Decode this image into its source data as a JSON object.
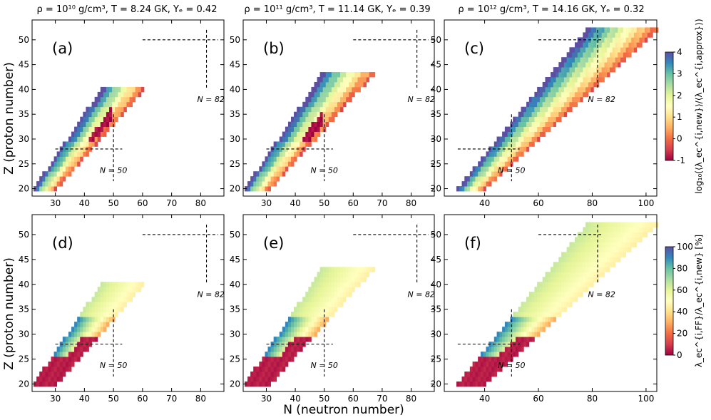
{
  "chart_data": {
    "type": "heatmap",
    "column_titles": [
      "ρ = 10¹⁰ g/cm³, T = 8.24 GK, Yₑ = 0.42",
      "ρ = 10¹¹ g/cm³, T = 11.14 GK, Yₑ = 0.39",
      "ρ = 10¹² g/cm³, T = 14.16 GK, Yₑ = 0.32"
    ],
    "xlabel": "N (neutron number)",
    "ylabel": "Z (proton number)",
    "ylim": [
      18.5,
      54
    ],
    "xlims": [
      [
        22,
        88
      ],
      [
        22,
        88
      ],
      [
        25,
        104
      ]
    ],
    "xticks": [
      [
        30,
        40,
        50,
        60,
        70,
        80
      ],
      [
        30,
        40,
        50,
        60,
        70,
        80
      ],
      [
        40,
        60,
        80,
        100
      ]
    ],
    "yticks": [
      20,
      25,
      30,
      35,
      40,
      45,
      50
    ],
    "magic_labels": {
      "n50": "N = 50",
      "n82": "N = 82"
    },
    "colorbars": [
      {
        "label": "log₁₀(⟨λ_ec^{i,new}⟩/⟨λ_ec^{i,approx}⟩)",
        "min": -1,
        "max": 4,
        "ticks": [
          -1,
          0,
          1,
          2,
          3,
          4
        ]
      },
      {
        "label": "λ_ec^{i,FF}/λ_ec^{i,new} [%]",
        "min": 0,
        "max": 100,
        "ticks": [
          0,
          20,
          40,
          60,
          80,
          100
        ]
      }
    ],
    "panels": [
      {
        "label": "(a)",
        "row": 0,
        "col": 0,
        "metric": "log_ratio",
        "zmin": 20,
        "zmax": 40,
        "ratio_lo": 1.15,
        "ratio_hi": 1.5
      },
      {
        "label": "(b)",
        "row": 0,
        "col": 1,
        "metric": "log_ratio",
        "zmin": 20,
        "zmax": 43,
        "ratio_lo": 1.15,
        "ratio_hi": 1.55
      },
      {
        "label": "(c)",
        "row": 0,
        "col": 2,
        "metric": "log_ratio",
        "zmin": 20,
        "zmax": 52,
        "ratio_lo": 1.5,
        "ratio_hi": 2.0
      },
      {
        "label": "(d)",
        "row": 1,
        "col": 0,
        "metric": "ff_percent",
        "zmin": 20,
        "zmax": 40,
        "ratio_lo": 1.15,
        "ratio_hi": 1.5
      },
      {
        "label": "(e)",
        "row": 1,
        "col": 1,
        "metric": "ff_percent",
        "zmin": 20,
        "zmax": 43,
        "ratio_lo": 1.15,
        "ratio_hi": 1.55
      },
      {
        "label": "(f)",
        "row": 1,
        "col": 2,
        "metric": "ff_percent",
        "zmin": 20,
        "zmax": 52,
        "ratio_lo": 1.5,
        "ratio_hi": 2.0
      }
    ]
  }
}
